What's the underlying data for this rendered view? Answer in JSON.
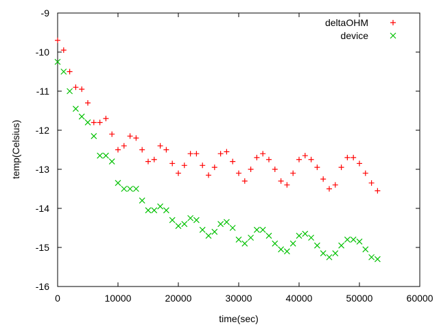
{
  "chart_data": {
    "type": "scatter",
    "xlabel": "time(sec)",
    "ylabel": "temp(Celsius)",
    "xlim": [
      0,
      60000
    ],
    "xticks": [
      0,
      10000,
      20000,
      30000,
      40000,
      50000,
      60000
    ],
    "ylim": [
      -16,
      -9
    ],
    "yticks": [
      -16,
      -15,
      -14,
      -13,
      -12,
      -11,
      -10,
      -9
    ],
    "grid": false,
    "legend": "top-right",
    "x": [
      0,
      1000,
      2000,
      3000,
      4000,
      5000,
      6000,
      7000,
      8000,
      9000,
      10000,
      11000,
      12000,
      13000,
      14000,
      15000,
      16000,
      17000,
      18000,
      19000,
      20000,
      21000,
      22000,
      23000,
      24000,
      25000,
      26000,
      27000,
      28000,
      29000,
      30000,
      31000,
      32000,
      33000,
      34000,
      35000,
      36000,
      37000,
      38000,
      39000,
      40000,
      41000,
      42000,
      43000,
      44000,
      45000,
      46000,
      47000,
      48000,
      49000,
      50000,
      51000,
      52000,
      53000
    ],
    "series": [
      {
        "name": "deltaOHM",
        "color": "#ff0000",
        "marker": "plus",
        "values": [
          -9.7,
          -9.95,
          -10.5,
          -10.9,
          -10.95,
          -11.3,
          -11.8,
          -11.8,
          -11.7,
          -12.1,
          -12.5,
          -12.4,
          -12.15,
          -12.2,
          -12.5,
          -12.8,
          -12.75,
          -12.4,
          -12.5,
          -12.85,
          -13.1,
          -12.9,
          -12.6,
          -12.6,
          -12.9,
          -13.15,
          -12.95,
          -12.6,
          -12.55,
          -12.8,
          -13.1,
          -13.3,
          -13.0,
          -12.7,
          -12.6,
          -12.75,
          -13.0,
          -13.3,
          -13.4,
          -13.1,
          -12.75,
          -12.65,
          -12.75,
          -12.95,
          -13.25,
          -13.5,
          -13.4,
          -12.95,
          -12.7,
          -12.7,
          -12.85,
          -13.1,
          -13.35,
          -13.55
        ]
      },
      {
        "name": "device",
        "color": "#00c000",
        "marker": "cross",
        "values": [
          -10.25,
          -10.5,
          -11.0,
          -11.45,
          -11.65,
          -11.8,
          -12.15,
          -12.65,
          -12.65,
          -12.8,
          -13.35,
          -13.5,
          -13.5,
          -13.5,
          -13.8,
          -14.05,
          -14.05,
          -13.95,
          -14.05,
          -14.3,
          -14.45,
          -14.4,
          -14.25,
          -14.3,
          -14.55,
          -14.7,
          -14.6,
          -14.4,
          -14.35,
          -14.5,
          -14.8,
          -14.9,
          -14.75,
          -14.55,
          -14.55,
          -14.7,
          -14.9,
          -15.05,
          -15.1,
          -14.9,
          -14.7,
          -14.65,
          -14.75,
          -14.95,
          -15.15,
          -15.25,
          -15.15,
          -14.95,
          -14.8,
          -14.8,
          -14.85,
          -15.05,
          -15.25,
          -15.3
        ]
      }
    ]
  }
}
